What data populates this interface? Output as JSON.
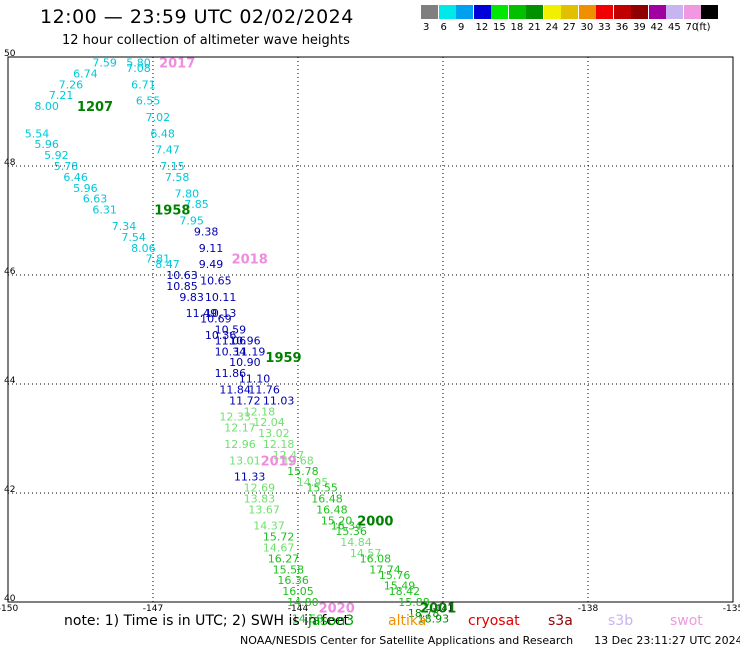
{
  "title": "12:00 — 23:59 UTC 02/02/2024",
  "subtitle": "12 hour collection of altimeter wave heights",
  "colorbar": {
    "unit": "(ft)",
    "bins": [
      {
        "label": "3",
        "color": "#7f7f7f"
      },
      {
        "label": "6",
        "color": "#00e8e8"
      },
      {
        "label": "9",
        "color": "#00a0f0"
      },
      {
        "label": "12",
        "color": "#0000d8"
      },
      {
        "label": "15",
        "color": "#00e800"
      },
      {
        "label": "18",
        "color": "#00c000"
      },
      {
        "label": "21",
        "color": "#009000"
      },
      {
        "label": "24",
        "color": "#f0f000"
      },
      {
        "label": "27",
        "color": "#e0c000"
      },
      {
        "label": "30",
        "color": "#f09000"
      },
      {
        "label": "33",
        "color": "#f00000"
      },
      {
        "label": "36",
        "color": "#c00000"
      },
      {
        "label": "39",
        "color": "#900000"
      },
      {
        "label": "42",
        "color": "#a000a0"
      },
      {
        "label": "45",
        "color": "#c8b4f0"
      },
      {
        "label": "70",
        "color": "#f098e0"
      },
      {
        "label": "",
        "color": "#000000"
      }
    ]
  },
  "chart_data": {
    "type": "scatter",
    "title": "12:00 — 23:59 UTC 02/02/2024",
    "subtitle": "12 hour collection of altimeter wave heights",
    "xlabel": "",
    "ylabel": "",
    "xlim": [
      -150,
      -135
    ],
    "ylim": [
      40,
      50
    ],
    "xticks": [
      "-150",
      "-147",
      "-144",
      "-141",
      "-138",
      "-135"
    ],
    "yticks": [
      "40",
      "42",
      "44",
      "46",
      "48",
      "50"
    ],
    "grid": true,
    "colors": {
      "c6": "#00c8d8",
      "c12": "#0000b0",
      "c15": "#70e070",
      "c18": "#20c020",
      "c21": "#008c00",
      "time": "#008000",
      "time_alt": "#f08ce0"
    },
    "points": [
      {
        "x": -148.0,
        "y": 49.9,
        "v": "7.59",
        "c": "c6"
      },
      {
        "x": -147.3,
        "y": 49.9,
        "v": "5.80",
        "c": "c6"
      },
      {
        "x": -148.4,
        "y": 49.7,
        "v": "6.74",
        "c": "c6"
      },
      {
        "x": -147.3,
        "y": 49.8,
        "v": "7.08",
        "c": "c6"
      },
      {
        "x": -148.7,
        "y": 49.5,
        "v": "7.26",
        "c": "c6"
      },
      {
        "x": -147.2,
        "y": 49.5,
        "v": "6.71",
        "c": "c6"
      },
      {
        "x": -148.9,
        "y": 49.3,
        "v": "7.21",
        "c": "c6"
      },
      {
        "x": -147.1,
        "y": 49.2,
        "v": "6.55",
        "c": "c6"
      },
      {
        "x": -149.2,
        "y": 49.1,
        "v": "8.00",
        "c": "c6"
      },
      {
        "x": -146.9,
        "y": 48.9,
        "v": "7.02",
        "c": "c6"
      },
      {
        "x": -146.8,
        "y": 48.6,
        "v": "6.48",
        "c": "c6"
      },
      {
        "x": -149.4,
        "y": 48.6,
        "v": "5.54",
        "c": "c6"
      },
      {
        "x": -146.7,
        "y": 48.3,
        "v": "7.47",
        "c": "c6"
      },
      {
        "x": -149.2,
        "y": 48.4,
        "v": "5.96",
        "c": "c6"
      },
      {
        "x": -149.0,
        "y": 48.2,
        "v": "5.92",
        "c": "c6"
      },
      {
        "x": -146.6,
        "y": 48.0,
        "v": "7.15",
        "c": "c6"
      },
      {
        "x": -148.8,
        "y": 48.0,
        "v": "5.78",
        "c": "c6"
      },
      {
        "x": -146.5,
        "y": 47.8,
        "v": "7.58",
        "c": "c6"
      },
      {
        "x": -148.6,
        "y": 47.8,
        "v": "6.46",
        "c": "c6"
      },
      {
        "x": -148.4,
        "y": 47.6,
        "v": "5.96",
        "c": "c6"
      },
      {
        "x": -146.3,
        "y": 47.5,
        "v": "7.80",
        "c": "c6"
      },
      {
        "x": -148.2,
        "y": 47.4,
        "v": "6.63",
        "c": "c6"
      },
      {
        "x": -146.1,
        "y": 47.3,
        "v": "7.85",
        "c": "c6"
      },
      {
        "x": -148.0,
        "y": 47.2,
        "v": "6.31",
        "c": "c6"
      },
      {
        "x": -146.2,
        "y": 47.0,
        "v": "7.95",
        "c": "c6"
      },
      {
        "x": -147.6,
        "y": 46.9,
        "v": "7.34",
        "c": "c6"
      },
      {
        "x": -147.4,
        "y": 46.7,
        "v": "7.54",
        "c": "c6"
      },
      {
        "x": -145.9,
        "y": 46.8,
        "v": "9.38",
        "c": "c12"
      },
      {
        "x": -147.2,
        "y": 46.5,
        "v": "8.06",
        "c": "c6"
      },
      {
        "x": -145.8,
        "y": 46.5,
        "v": "9.11",
        "c": "c12"
      },
      {
        "x": -146.9,
        "y": 46.3,
        "v": "7.81",
        "c": "c6"
      },
      {
        "x": -146.7,
        "y": 46.2,
        "v": "8.47",
        "c": "c6"
      },
      {
        "x": -145.8,
        "y": 46.2,
        "v": "9.49",
        "c": "c12"
      },
      {
        "x": -146.4,
        "y": 46.0,
        "v": "10.63",
        "c": "c12"
      },
      {
        "x": -145.7,
        "y": 45.9,
        "v": "10.65",
        "c": "c12"
      },
      {
        "x": -146.4,
        "y": 45.8,
        "v": "10.85",
        "c": "c12"
      },
      {
        "x": -146.2,
        "y": 45.6,
        "v": "9.83",
        "c": "c12"
      },
      {
        "x": -145.6,
        "y": 45.6,
        "v": "10.11",
        "c": "c12"
      },
      {
        "x": -146.0,
        "y": 45.3,
        "v": "11.49",
        "c": "c12"
      },
      {
        "x": -145.6,
        "y": 45.3,
        "v": "10.13",
        "c": "c12"
      },
      {
        "x": -145.7,
        "y": 45.2,
        "v": "10.69",
        "c": "c12"
      },
      {
        "x": -145.4,
        "y": 45.0,
        "v": "10.59",
        "c": "c12"
      },
      {
        "x": -145.6,
        "y": 44.9,
        "v": "10.36",
        "c": "c12"
      },
      {
        "x": -145.4,
        "y": 44.8,
        "v": "11.06",
        "c": "c12"
      },
      {
        "x": -145.1,
        "y": 44.8,
        "v": "10.96",
        "c": "c12"
      },
      {
        "x": -145.4,
        "y": 44.6,
        "v": "10.34",
        "c": "c12"
      },
      {
        "x": -145.0,
        "y": 44.6,
        "v": "11.19",
        "c": "c12"
      },
      {
        "x": -145.1,
        "y": 44.4,
        "v": "10.90",
        "c": "c12"
      },
      {
        "x": -145.4,
        "y": 44.2,
        "v": "11.86",
        "c": "c12"
      },
      {
        "x": -144.9,
        "y": 44.1,
        "v": "11.10",
        "c": "c12"
      },
      {
        "x": -145.3,
        "y": 43.9,
        "v": "11.84",
        "c": "c12"
      },
      {
        "x": -144.7,
        "y": 43.9,
        "v": "11.76",
        "c": "c12"
      },
      {
        "x": -145.1,
        "y": 43.7,
        "v": "11.72",
        "c": "c12"
      },
      {
        "x": -144.4,
        "y": 43.7,
        "v": "11.03",
        "c": "c12"
      },
      {
        "x": -144.8,
        "y": 43.5,
        "v": "12.18",
        "c": "c15"
      },
      {
        "x": -145.3,
        "y": 43.4,
        "v": "12.33",
        "c": "c15"
      },
      {
        "x": -144.6,
        "y": 43.3,
        "v": "12.04",
        "c": "c15"
      },
      {
        "x": -145.2,
        "y": 43.2,
        "v": "12.17",
        "c": "c15"
      },
      {
        "x": -144.5,
        "y": 43.1,
        "v": "13.02",
        "c": "c15"
      },
      {
        "x": -145.2,
        "y": 42.9,
        "v": "12.96",
        "c": "c15"
      },
      {
        "x": -144.4,
        "y": 42.9,
        "v": "12.18",
        "c": "c15"
      },
      {
        "x": -144.2,
        "y": 42.7,
        "v": "12.47",
        "c": "c15"
      },
      {
        "x": -145.1,
        "y": 42.6,
        "v": "13.01",
        "c": "c15"
      },
      {
        "x": -144.0,
        "y": 42.6,
        "v": "12.68",
        "c": "c15"
      },
      {
        "x": -143.9,
        "y": 42.4,
        "v": "15.78",
        "c": "c18"
      },
      {
        "x": -145.0,
        "y": 42.3,
        "v": "11.33",
        "c": "c12"
      },
      {
        "x": -143.7,
        "y": 42.2,
        "v": "14.95",
        "c": "c15"
      },
      {
        "x": -144.8,
        "y": 42.1,
        "v": "12.69",
        "c": "c15"
      },
      {
        "x": -143.5,
        "y": 42.1,
        "v": "15.55",
        "c": "c18"
      },
      {
        "x": -143.4,
        "y": 41.9,
        "v": "16.48",
        "c": "c18"
      },
      {
        "x": -144.8,
        "y": 41.9,
        "v": "13.83",
        "c": "c15"
      },
      {
        "x": -143.3,
        "y": 41.7,
        "v": "16.48",
        "c": "c18"
      },
      {
        "x": -144.7,
        "y": 41.7,
        "v": "13.67",
        "c": "c15"
      },
      {
        "x": -143.2,
        "y": 41.5,
        "v": "15.20",
        "c": "c18"
      },
      {
        "x": -143.0,
        "y": 41.4,
        "v": "16.34",
        "c": "c18"
      },
      {
        "x": -144.6,
        "y": 41.4,
        "v": "14.37",
        "c": "c15"
      },
      {
        "x": -142.9,
        "y": 41.3,
        "v": "15.36",
        "c": "c18"
      },
      {
        "x": -144.4,
        "y": 41.2,
        "v": "15.72",
        "c": "c18"
      },
      {
        "x": -142.8,
        "y": 41.1,
        "v": "14.84",
        "c": "c15"
      },
      {
        "x": -142.6,
        "y": 40.9,
        "v": "14.57",
        "c": "c15"
      },
      {
        "x": -144.4,
        "y": 41.0,
        "v": "14.67",
        "c": "c15"
      },
      {
        "x": -142.4,
        "y": 40.8,
        "v": "16.08",
        "c": "c18"
      },
      {
        "x": -144.3,
        "y": 40.8,
        "v": "16.27",
        "c": "c18"
      },
      {
        "x": -142.2,
        "y": 40.6,
        "v": "17.74",
        "c": "c18"
      },
      {
        "x": -144.2,
        "y": 40.6,
        "v": "15.58",
        "c": "c18"
      },
      {
        "x": -142.0,
        "y": 40.5,
        "v": "15.76",
        "c": "c18"
      },
      {
        "x": -144.1,
        "y": 40.4,
        "v": "16.36",
        "c": "c18"
      },
      {
        "x": -141.9,
        "y": 40.3,
        "v": "15.49",
        "c": "c18"
      },
      {
        "x": -141.8,
        "y": 40.2,
        "v": "18.42",
        "c": "c18"
      },
      {
        "x": -144.0,
        "y": 40.2,
        "v": "16.05",
        "c": "c18"
      },
      {
        "x": -141.6,
        "y": 40.0,
        "v": "15.88",
        "c": "c18"
      },
      {
        "x": -143.9,
        "y": 40.0,
        "v": "14.80",
        "c": "c18"
      },
      {
        "x": -141.4,
        "y": 39.8,
        "v": "18.78",
        "c": "c21"
      },
      {
        "x": -143.8,
        "y": 39.7,
        "v": "14.58",
        "c": "c18"
      },
      {
        "x": -141.2,
        "y": 39.7,
        "v": "18.93",
        "c": "c21"
      }
    ],
    "time_labels": [
      {
        "x": -146.5,
        "y": 49.9,
        "v": "2017",
        "c": "time_alt"
      },
      {
        "x": -148.2,
        "y": 49.1,
        "v": "1207",
        "c": "time"
      },
      {
        "x": -146.6,
        "y": 47.2,
        "v": "1958",
        "c": "time"
      },
      {
        "x": -145.0,
        "y": 46.3,
        "v": "2018",
        "c": "time_alt"
      },
      {
        "x": -144.3,
        "y": 44.5,
        "v": "1959",
        "c": "time"
      },
      {
        "x": -144.4,
        "y": 42.6,
        "v": "2019",
        "c": "time_alt"
      },
      {
        "x": -142.4,
        "y": 41.5,
        "v": "2000",
        "c": "time"
      },
      {
        "x": -141.1,
        "y": 39.9,
        "v": "2001",
        "c": "time"
      },
      {
        "x": -143.2,
        "y": 39.9,
        "v": "2020",
        "c": "time_alt"
      }
    ]
  },
  "footer": {
    "note": "note:  1) Time is in UTC; 2) SWH is in feet",
    "satellites": [
      {
        "name": "jason3",
        "color": "#00a000"
      },
      {
        "name": "altika",
        "color": "#f09000"
      },
      {
        "name": "cryosat",
        "color": "#e00000"
      },
      {
        "name": "s3a",
        "color": "#900000"
      },
      {
        "name": "s3b",
        "color": "#c8b4f0"
      },
      {
        "name": "swot",
        "color": "#f098e0"
      }
    ],
    "credit": "NOAA/NESDIS Center for Satellite Applications and Research",
    "timestamp": "13 Dec 23:11:27 UTC 2024"
  }
}
